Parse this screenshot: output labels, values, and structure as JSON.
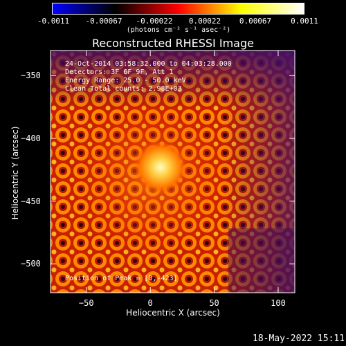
{
  "colorbar": {
    "colors": [
      "#0000ff",
      "#000000",
      "#ff0000",
      "#ffff00",
      "#ffffff"
    ],
    "ticks": [
      "-0.0011",
      "-0.00067",
      "-0.00022",
      "0.00022",
      "0.00067",
      "0.0011"
    ],
    "units": "(photons cm⁻² s⁻¹ asec⁻²)"
  },
  "chart_data": {
    "type": "heatmap",
    "title": "Reconstructed RHESSI Image",
    "xlabel": "Heliocentric X (arcsec)",
    "ylabel": "Heliocentric Y (arcsec)",
    "xlim": [
      -78,
      113
    ],
    "ylim": [
      -523,
      -330
    ],
    "xticks": [
      -50,
      0,
      50,
      100
    ],
    "yticks": [
      -350,
      -400,
      -450,
      -500
    ],
    "peak": {
      "x": 8,
      "y": -423
    },
    "annotations": {
      "time": "24-Oct-2014 03:58:32.000 to 04:03:28.000",
      "detectors": "Detectors: 3F 6F 9F, Att 1",
      "energy": "Energy Range: 25.0 - 50.0 keV",
      "clean": "Clean    Total counts: 2.98E+03",
      "peak_label": "Position of Peak = [8,-423]"
    }
  },
  "footer": {
    "date": "18-May-2022 15:11"
  }
}
